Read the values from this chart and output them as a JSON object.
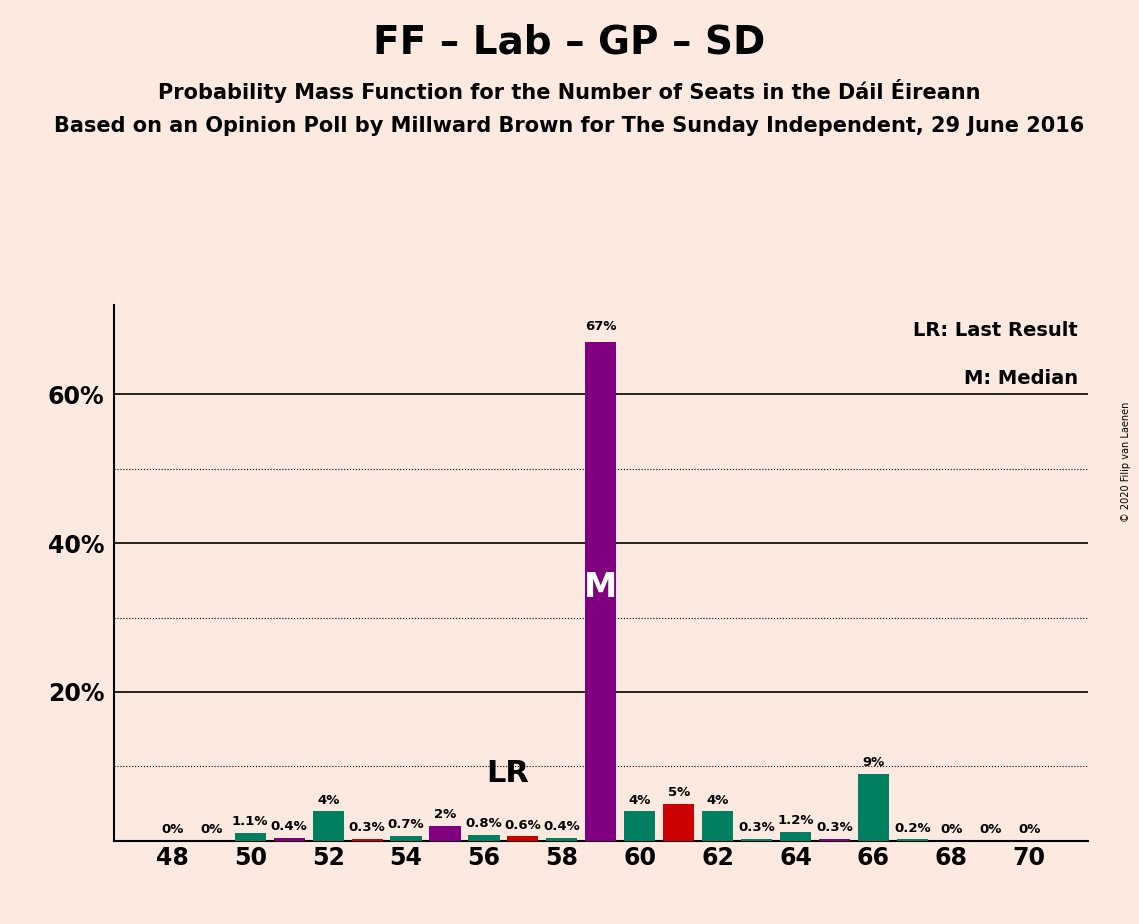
{
  "title": "FF – Lab – GP – SD",
  "subtitle1": "Probability Mass Function for the Number of Seats in the Dáil Éireann",
  "subtitle2": "Based on an Opinion Poll by Millward Brown for The Sunday Independent, 29 June 2016",
  "copyright": "© 2020 Filip van Laenen",
  "background_color": "#fce9e0",
  "bar_data": [
    {
      "x": 48,
      "height": 0.0,
      "color": "#008060"
    },
    {
      "x": 49,
      "height": 0.0,
      "color": "#008060"
    },
    {
      "x": 50,
      "height": 1.1,
      "color": "#008060"
    },
    {
      "x": 51,
      "height": 0.4,
      "color": "#800080"
    },
    {
      "x": 52,
      "height": 4.0,
      "color": "#008060"
    },
    {
      "x": 53,
      "height": 0.3,
      "color": "#cc0000"
    },
    {
      "x": 54,
      "height": 0.7,
      "color": "#008060"
    },
    {
      "x": 55,
      "height": 2.0,
      "color": "#800080"
    },
    {
      "x": 56,
      "height": 0.8,
      "color": "#008060"
    },
    {
      "x": 57,
      "height": 0.6,
      "color": "#cc0000"
    },
    {
      "x": 58,
      "height": 0.4,
      "color": "#008060"
    },
    {
      "x": 59,
      "height": 67.0,
      "color": "#800080"
    },
    {
      "x": 60,
      "height": 4.0,
      "color": "#008060"
    },
    {
      "x": 61,
      "height": 5.0,
      "color": "#cc0000"
    },
    {
      "x": 62,
      "height": 4.0,
      "color": "#008060"
    },
    {
      "x": 63,
      "height": 0.3,
      "color": "#008060"
    },
    {
      "x": 64,
      "height": 1.2,
      "color": "#008060"
    },
    {
      "x": 65,
      "height": 0.3,
      "color": "#800080"
    },
    {
      "x": 66,
      "height": 9.0,
      "color": "#008060"
    },
    {
      "x": 67,
      "height": 0.2,
      "color": "#008060"
    },
    {
      "x": 68,
      "height": 0.0,
      "color": "#008060"
    },
    {
      "x": 69,
      "height": 0.0,
      "color": "#008060"
    },
    {
      "x": 70,
      "height": 0.0,
      "color": "#008060"
    }
  ],
  "bar_labels": [
    {
      "x": 48,
      "label": "0%"
    },
    {
      "x": 49,
      "label": "0%"
    },
    {
      "x": 50,
      "label": "1.1%"
    },
    {
      "x": 51,
      "label": "0.4%"
    },
    {
      "x": 52,
      "label": "4%"
    },
    {
      "x": 53,
      "label": "0.3%"
    },
    {
      "x": 54,
      "label": "0.7%"
    },
    {
      "x": 55,
      "label": "2%"
    },
    {
      "x": 56,
      "label": "0.8%"
    },
    {
      "x": 57,
      "label": "0.6%"
    },
    {
      "x": 58,
      "label": "0.4%"
    },
    {
      "x": 59,
      "label": "67%"
    },
    {
      "x": 60,
      "label": "4%"
    },
    {
      "x": 61,
      "label": "5%"
    },
    {
      "x": 62,
      "label": "4%"
    },
    {
      "x": 63,
      "label": "0.3%"
    },
    {
      "x": 64,
      "label": "1.2%"
    },
    {
      "x": 65,
      "label": "0.3%"
    },
    {
      "x": 66,
      "label": "9%"
    },
    {
      "x": 67,
      "label": "0.2%"
    },
    {
      "x": 68,
      "label": "0%"
    },
    {
      "x": 69,
      "label": "0%"
    },
    {
      "x": 70,
      "label": "0%"
    }
  ],
  "lr_x": 57,
  "median_x": 59,
  "median_label": "M",
  "lr_label": "LR",
  "legend_lr": "LR: Last Result",
  "legend_m": "M: Median",
  "xlim": [
    46.5,
    71.5
  ],
  "ylim": [
    0,
    72
  ],
  "xticks": [
    48,
    50,
    52,
    54,
    56,
    58,
    60,
    62,
    64,
    66,
    68,
    70
  ],
  "hlines_dotted": [
    10,
    30,
    50
  ],
  "hlines_solid": [
    20,
    40,
    60
  ],
  "bar_width": 0.8,
  "title_fontsize": 28,
  "subtitle1_fontsize": 15,
  "subtitle2_fontsize": 15
}
